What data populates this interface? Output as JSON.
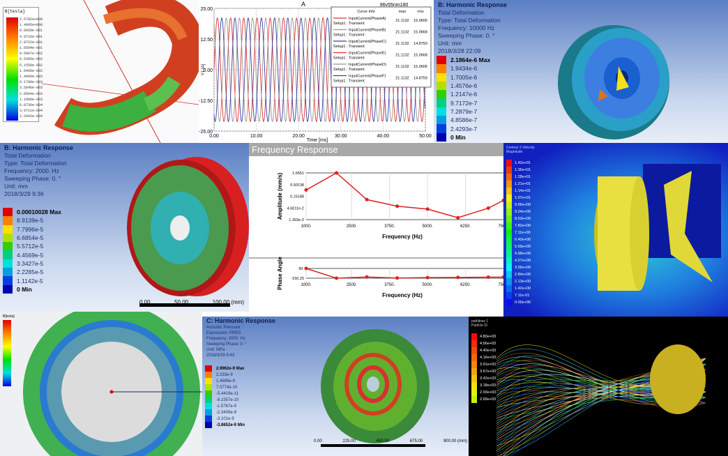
{
  "panel_coil": {
    "legend_title": "B[tesla]",
    "legend_values": [
      "2.5782e+000",
      "1.4095e+000",
      "8.6059e-001",
      "4.9716e-001",
      "2.0722e-001",
      "1.6594e-001",
      "9.5907e-002",
      "6.5385e-002",
      "5.1559e-002",
      "1.0460e-002",
      "1.4690e-003",
      "6.1708e-003",
      "3.5646e-003",
      "2.0594e-003",
      "1.1896e-003",
      "6.8736e-004",
      "3.9711e-004",
      "2.2942e-004"
    ]
  },
  "panel_current": {
    "title": "A",
    "design": "96v55nm180",
    "ylabel": "Y1 [A]",
    "xlabel": "Time [ms]",
    "legend": {
      "headers": [
        "Curve Info",
        "max",
        "rms"
      ],
      "rows": [
        {
          "name": "InputCurrent(PhaseA)",
          "setup": "Setup1 : Transient",
          "max": "21.1132",
          "rms": "15.0606",
          "color": "#e03030"
        },
        {
          "name": "InputCurrent(PhaseB)",
          "setup": "Setup1 : Transient",
          "max": "21.1132",
          "rms": "15.0668",
          "color": "#a09090"
        },
        {
          "name": "InputCurrent(PhaseC)",
          "setup": "Setup1 : Transient",
          "max": "21.1132",
          "rms": "14.8750",
          "color": "#3040a0"
        },
        {
          "name": "InputCurrent(PhaseE)",
          "setup": "Setup1 : Transient",
          "max": "21.1132",
          "rms": "15.0668",
          "color": "#e03030"
        },
        {
          "name": "InputCurrent(PhaseD)",
          "setup": "Setup1 : Transient",
          "max": "21.1132",
          "rms": "15.0606",
          "color": "#a09090"
        },
        {
          "name": "InputCurrent(PhaseF)",
          "setup": "Setup1 : Transient",
          "max": "21.1132",
          "rms": "14.8750",
          "color": "#3040a0"
        }
      ]
    }
  },
  "chart_data": [
    {
      "type": "line",
      "title": "A",
      "xlabel": "Time [ms]",
      "ylabel": "Y1 [A]",
      "xlim": [
        0,
        50
      ],
      "ylim": [
        -25,
        25
      ],
      "xticks": [
        "0.00",
        "10.00",
        "20.00",
        "30.00",
        "40.00",
        "50.00"
      ],
      "yticks": [
        "25.00",
        "12.50",
        "0.00",
        "-12.50",
        "-25.00"
      ],
      "series_model": {
        "amplitude": 21.1132,
        "frequency_khz": 0.32,
        "phases_deg": [
          0,
          120,
          240
        ]
      },
      "grid": true
    },
    {
      "type": "line",
      "title": "Frequency Response",
      "xlabel": "Frequency (Hz)",
      "ylabel": "Amplitude (mm/s)",
      "yscale": "log",
      "x": [
        1000,
        2000,
        3000,
        4000,
        5000,
        6000,
        7000,
        7500
      ],
      "y": [
        0.29,
        1.6551,
        0.108,
        0.055,
        0.041,
        0.017,
        0.045,
        0.1
      ],
      "xticks": [
        "1000.",
        "2500.",
        "3750.",
        "5000.",
        "6250.",
        "7500."
      ],
      "yticks": [
        "1.6551",
        "0.50138",
        "0.15188",
        "4.6011e-2",
        "1.393e-2"
      ],
      "ylim": [
        0.01393,
        1.6551
      ],
      "xlim": [
        1000,
        7500
      ]
    },
    {
      "type": "line",
      "xlabel": "Frequency (Hz)",
      "ylabel": "Phase Angle",
      "x": [
        1000,
        2000,
        3000,
        4000,
        5000,
        6000,
        7000,
        7500
      ],
      "y": [
        90,
        -150,
        -120,
        -145,
        -135,
        -130,
        -125,
        -125
      ],
      "xticks": [
        "1000.",
        "2500.",
        "3750.",
        "5000.",
        "6250.",
        "7500."
      ],
      "yticks": [
        "90.",
        "-150.25"
      ],
      "ylim": [
        -150.25,
        90
      ],
      "xlim": [
        1000,
        7500
      ]
    }
  ],
  "panel_wheel_top": {
    "lines": [
      "B: Harmonic Response",
      "Total Deformation",
      "Type: Total Deformation",
      "Frequency: 10000 Hz",
      "Sweeping Phase: 0. °",
      "Unit: mm",
      "2018/3/28 22:09"
    ],
    "legend": [
      "2.1864e-6 Max",
      "1.9434e-6",
      "1.7005e-6",
      "1.4576e-6",
      "1.2147e-6",
      "9.7172e-7",
      "7.2879e-7",
      "4.8586e-7",
      "2.4293e-7",
      "0 Min"
    ]
  },
  "panel_wheel_mid": {
    "lines": [
      "B: Harmonic Response",
      "Total Deformation",
      "Type: Total Deformation",
      "Frequency: 2000. Hz",
      "Sweeping Phase: 0. °",
      "Unit: mm",
      "2018/3/29 9:36"
    ],
    "legend": [
      "0.00010028 Max",
      "8.9139e-5",
      "7.7996e-5",
      "6.6854e-5",
      "5.5712e-5",
      "4.4569e-5",
      "3.3427e-5",
      "2.2285e-5",
      "1.1142e-5",
      "0 Min"
    ],
    "scale": [
      "0.00",
      "50.00",
      "100.00 (mm)"
    ]
  },
  "panel_cfd": {
    "legend_title": "Contour 2 Velocity Magnitude",
    "legend": [
      "1.42e+01",
      "1.35e+01",
      "1.28e+01",
      "1.21e+01",
      "1.14e+01",
      "1.07e+01",
      "9.96e+00",
      "9.24e+00",
      "8.53e+00",
      "7.82e+00",
      "7.11e+00",
      "6.40e+00",
      "5.69e+00",
      "4.98e+00",
      "4.27e+00",
      "3.56e+00",
      "2.84e+00",
      "2.13e+00",
      "1.42e+00",
      "7.11e-01",
      "0.00e+00"
    ]
  },
  "panel_ring": {
    "legend_title": "B[tesla]"
  },
  "panel_disk": {
    "lines": [
      "C: Harmonic Response",
      "Acoustic Pressure",
      "Expression: PRES",
      "Frequency: 2000. Hz",
      "Sweeping Phase: 0. °",
      "Unit: MPa",
      "2018/3/29 9:43"
    ],
    "legend": [
      "2.9962e-9 Max",
      "2.233e-9",
      "1.4699e-9",
      "7.0774e-10",
      "-5.4419e-11",
      "-8.1557e-10",
      "-1.5767e-9",
      "-2.3409e-9",
      "-3.101e-9",
      "-3.8652e-9 Min"
    ],
    "scale": [
      "0.00",
      "225.00",
      "450.00",
      "675.00",
      "900.00 (mm)"
    ]
  },
  "panel_stream": {
    "legend_title": "pathlines 1 Particle ID",
    "legend": [
      "4.80e+03",
      "4.56e+03",
      "4.40e+03",
      "4.16e+03",
      "3.91e+03",
      "3.67e+03",
      "3.42e+03",
      "3.18e+03",
      "2.93e+03",
      "2.69e+03"
    ]
  }
}
